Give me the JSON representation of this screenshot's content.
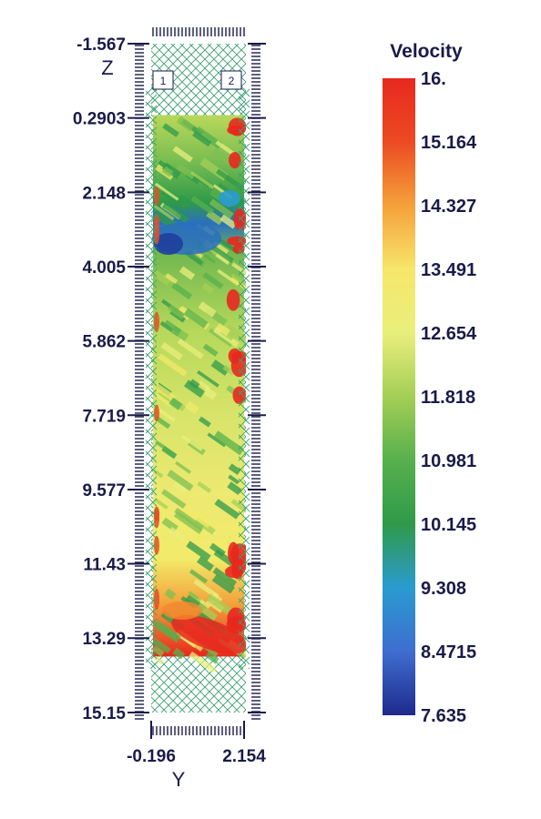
{
  "chart_data": {
    "type": "heatmap",
    "z_axis": {
      "label": "Z",
      "ticks": [
        "-1.567",
        "0.2903",
        "2.148",
        "4.005",
        "5.862",
        "7.719",
        "9.577",
        "11.43",
        "13.29",
        "15.15"
      ],
      "range": [
        -1.567,
        15.15
      ]
    },
    "y_axis": {
      "label": "Y",
      "ticks": [
        "-0.196",
        "2.154"
      ],
      "range": [
        -0.196,
        2.154
      ]
    },
    "markers": [
      "1",
      "2"
    ],
    "colorbar": {
      "title": "Velocity",
      "ticks": [
        "16.",
        "15.164",
        "14.327",
        "13.491",
        "12.654",
        "11.818",
        "10.981",
        "10.145",
        "9.308",
        "8.4715",
        "7.635"
      ],
      "range": [
        7.635,
        16
      ]
    },
    "data_extent": {
      "z_range": [
        0.22,
        13.75
      ]
    },
    "colors": {
      "low": "#1e2a8c",
      "mid_low": "#2a9bd0",
      "mid": "#2f9a4a",
      "mid_high": "#f2ea6a",
      "high": "#e8281e",
      "axis": "#1a1a4a",
      "hatch": "#3aa070"
    }
  }
}
